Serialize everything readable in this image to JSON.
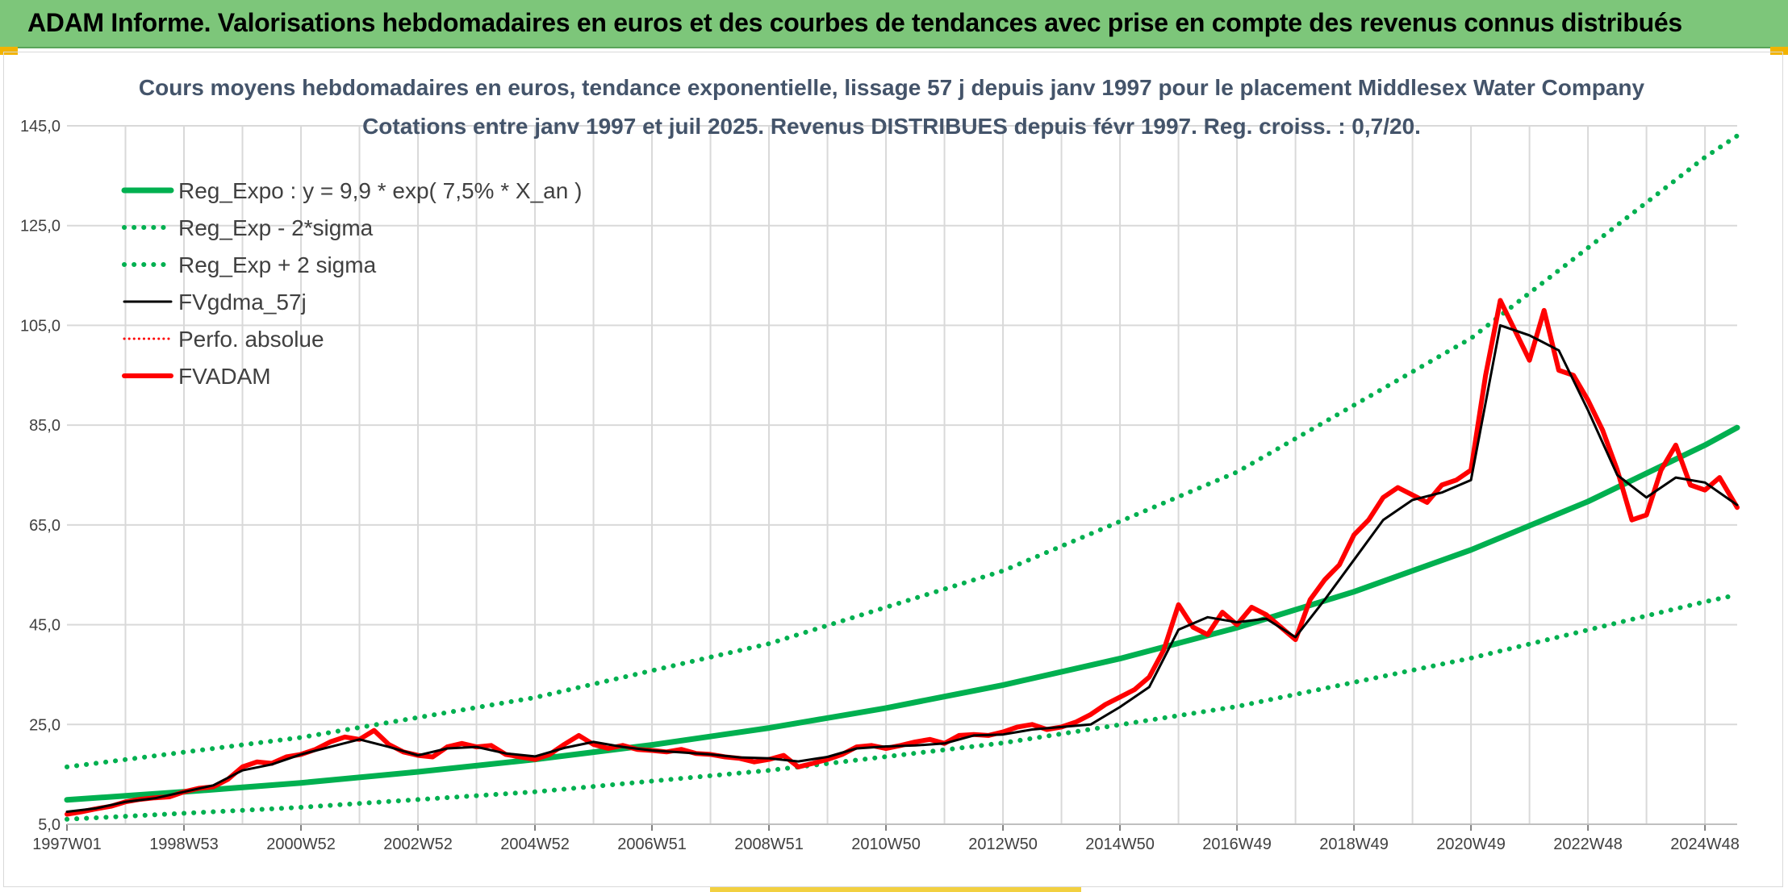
{
  "header": {
    "title": "ADAM Informe. Valorisations hebdomadaires en euros et des courbes de tendances avec prise en compte des revenus connus distribués"
  },
  "colors": {
    "header_bg": "#7dc67a",
    "trend": "#00b050",
    "smooth": "#000000",
    "adam": "#ff0000",
    "grid": "#d9d9d9"
  },
  "chart_data": {
    "type": "line",
    "title_line1": "Cours moyens hebdomadaires en euros, tendance exponentielle, lissage 57 j depuis janv 1997 pour le placement Middlesex Water Company",
    "title_line2": "Cotations entre janv 1997 et juil 2025. Revenus DISTRIBUES depuis févr 1997. Reg. croiss. : 0,7/20.",
    "x_tick_labels": [
      "1997W01",
      "1998W53",
      "2000W52",
      "2002W52",
      "2004W52",
      "2006W51",
      "2008W51",
      "2010W50",
      "2012W50",
      "2014W50",
      "2016W49",
      "2018W49",
      "2020W49",
      "2022W48",
      "2024W48"
    ],
    "x_tick_years": [
      1997.0,
      1999.0,
      2001.0,
      2003.0,
      2005.0,
      2007.0,
      2009.0,
      2011.0,
      2013.0,
      2015.0,
      2017.0,
      2019.0,
      2021.0,
      2023.0,
      2025.0
    ],
    "x_range": [
      1997.0,
      2025.55
    ],
    "y_ticks": [
      "5,0",
      "25,0",
      "45,0",
      "65,0",
      "85,0",
      "105,0",
      "125,0",
      "145,0"
    ],
    "ylim": [
      5,
      145
    ],
    "grid": true,
    "legend_position": "top-left",
    "series": [
      {
        "name": "Reg_Expo : y = 9,9 * exp( 7,5% *  X_an )",
        "style": "solid",
        "color": "#00b050",
        "width": 7,
        "x": [
          1997.0,
          1999.0,
          2001.0,
          2003.0,
          2005.0,
          2007.0,
          2009.0,
          2011.0,
          2013.0,
          2015.0,
          2017.0,
          2019.0,
          2021.0,
          2023.0,
          2025.0,
          2025.55
        ],
        "y": [
          9.9,
          11.5,
          13.3,
          15.5,
          18.0,
          20.9,
          24.3,
          28.3,
          32.9,
          38.2,
          44.4,
          51.6,
          60.0,
          69.7,
          81.0,
          84.5
        ]
      },
      {
        "name": "Reg_Exp - 2*sigma",
        "style": "dotted",
        "color": "#00b050",
        "width": 6,
        "x": [
          1997.0,
          2001.0,
          2005.0,
          2009.0,
          2013.0,
          2017.0,
          2021.0,
          2025.0,
          2025.55
        ],
        "y": [
          6.0,
          8.4,
          11.5,
          15.8,
          21.3,
          28.6,
          38.3,
          49.6,
          51.0
        ]
      },
      {
        "name": "Reg_Exp + 2 sigma",
        "style": "dotted",
        "color": "#00b050",
        "width": 6,
        "x": [
          1997.0,
          2001.0,
          2005.0,
          2009.0,
          2013.0,
          2017.0,
          2021.0,
          2025.0,
          2025.55
        ],
        "y": [
          16.5,
          22.4,
          30.4,
          41.2,
          55.8,
          75.6,
          102.4,
          138.7,
          143.0
        ]
      },
      {
        "name": "FVgdma_57j",
        "style": "solid",
        "color": "#000000",
        "width": 3,
        "x": [
          1997.0,
          1997.5,
          1998.0,
          1998.5,
          1999.0,
          1999.5,
          2000.0,
          2000.5,
          2001.0,
          2001.5,
          2002.0,
          2002.5,
          2003.0,
          2003.5,
          2004.0,
          2004.5,
          2005.0,
          2005.5,
          2006.0,
          2006.5,
          2007.0,
          2007.5,
          2008.0,
          2008.5,
          2009.0,
          2009.5,
          2010.0,
          2010.5,
          2011.0,
          2011.5,
          2012.0,
          2012.5,
          2013.0,
          2013.5,
          2014.0,
          2014.5,
          2015.0,
          2015.5,
          2016.0,
          2016.5,
          2017.0,
          2017.5,
          2018.0,
          2018.5,
          2019.0,
          2019.5,
          2020.0,
          2020.5,
          2021.0,
          2021.5,
          2022.0,
          2022.5,
          2023.0,
          2023.5,
          2024.0,
          2024.5,
          2025.0,
          2025.55
        ],
        "y": [
          7.5,
          8.2,
          9.5,
          10.2,
          11.5,
          12.8,
          15.8,
          17.0,
          19.0,
          20.5,
          22.0,
          20.5,
          18.8,
          20.2,
          20.5,
          19.2,
          18.6,
          20.3,
          21.5,
          20.5,
          19.8,
          19.4,
          19.0,
          18.4,
          18.2,
          17.6,
          18.5,
          20.2,
          20.6,
          20.8,
          21.2,
          22.8,
          23.0,
          24.0,
          24.5,
          25.0,
          28.5,
          32.5,
          44.0,
          46.5,
          45.5,
          46.2,
          42.5,
          50.0,
          58.0,
          66.0,
          70.0,
          71.5,
          74.0,
          105.0,
          103.0,
          100.0,
          88.0,
          75.0,
          70.5,
          74.5,
          73.5,
          69.0
        ]
      },
      {
        "name": "Perfo. absolue",
        "style": "dotted",
        "color": "#ff0000",
        "width": 3,
        "x": [],
        "y": []
      },
      {
        "name": "FVADAM",
        "style": "solid",
        "color": "#ff0000",
        "width": 6,
        "x": [
          1997.0,
          1997.25,
          1997.5,
          1997.75,
          1998.0,
          1998.25,
          1998.5,
          1998.75,
          1999.0,
          1999.25,
          1999.5,
          1999.75,
          2000.0,
          2000.25,
          2000.5,
          2000.75,
          2001.0,
          2001.25,
          2001.5,
          2001.75,
          2002.0,
          2002.25,
          2002.5,
          2002.75,
          2003.0,
          2003.25,
          2003.5,
          2003.75,
          2004.0,
          2004.25,
          2004.5,
          2004.75,
          2005.0,
          2005.25,
          2005.5,
          2005.75,
          2006.0,
          2006.25,
          2006.5,
          2006.75,
          2007.0,
          2007.25,
          2007.5,
          2007.75,
          2008.0,
          2008.25,
          2008.5,
          2008.75,
          2009.0,
          2009.25,
          2009.5,
          2009.75,
          2010.0,
          2010.25,
          2010.5,
          2010.75,
          2011.0,
          2011.25,
          2011.5,
          2011.75,
          2012.0,
          2012.25,
          2012.5,
          2012.75,
          2013.0,
          2013.25,
          2013.5,
          2013.75,
          2014.0,
          2014.25,
          2014.5,
          2014.75,
          2015.0,
          2015.25,
          2015.5,
          2015.75,
          2016.0,
          2016.25,
          2016.5,
          2016.75,
          2017.0,
          2017.25,
          2017.5,
          2017.75,
          2018.0,
          2018.25,
          2018.5,
          2018.75,
          2019.0,
          2019.25,
          2019.5,
          2019.75,
          2020.0,
          2020.25,
          2020.5,
          2020.75,
          2021.0,
          2021.25,
          2021.5,
          2021.75,
          2022.0,
          2022.25,
          2022.5,
          2022.75,
          2023.0,
          2023.25,
          2023.5,
          2023.75,
          2024.0,
          2024.25,
          2024.5,
          2024.75,
          2025.0,
          2025.25,
          2025.55
        ],
        "y": [
          7.0,
          7.5,
          8.1,
          8.6,
          9.5,
          10.0,
          10.3,
          10.5,
          11.5,
          12.2,
          12.5,
          14.0,
          16.5,
          17.5,
          17.2,
          18.5,
          19.0,
          20.0,
          21.5,
          22.5,
          22.0,
          23.8,
          21.0,
          19.5,
          18.8,
          18.5,
          20.5,
          21.2,
          20.5,
          20.8,
          19.0,
          18.5,
          18.0,
          19.0,
          21.0,
          22.8,
          21.0,
          20.2,
          20.8,
          20.0,
          19.8,
          19.5,
          20.0,
          19.2,
          19.0,
          18.5,
          18.2,
          17.5,
          18.0,
          18.8,
          16.5,
          17.2,
          18.0,
          19.0,
          20.5,
          20.8,
          20.2,
          20.8,
          21.5,
          22.0,
          21.2,
          22.8,
          23.0,
          22.8,
          23.5,
          24.5,
          25.0,
          24.0,
          24.5,
          25.5,
          27.0,
          29.0,
          30.5,
          32.0,
          34.5,
          40.0,
          49.0,
          44.5,
          43.0,
          47.5,
          45.0,
          48.5,
          47.0,
          44.5,
          42.0,
          50.0,
          54.0,
          57.0,
          63.0,
          66.0,
          70.5,
          72.5,
          71.0,
          69.5,
          73.0,
          74.0,
          76.0,
          95.0,
          110.0,
          104.0,
          98.0,
          108.0,
          96.0,
          95.0,
          90.0,
          84.0,
          76.0,
          66.0,
          67.0,
          76.0,
          81.0,
          73.0,
          72.0,
          74.5,
          68.5
        ]
      }
    ]
  }
}
